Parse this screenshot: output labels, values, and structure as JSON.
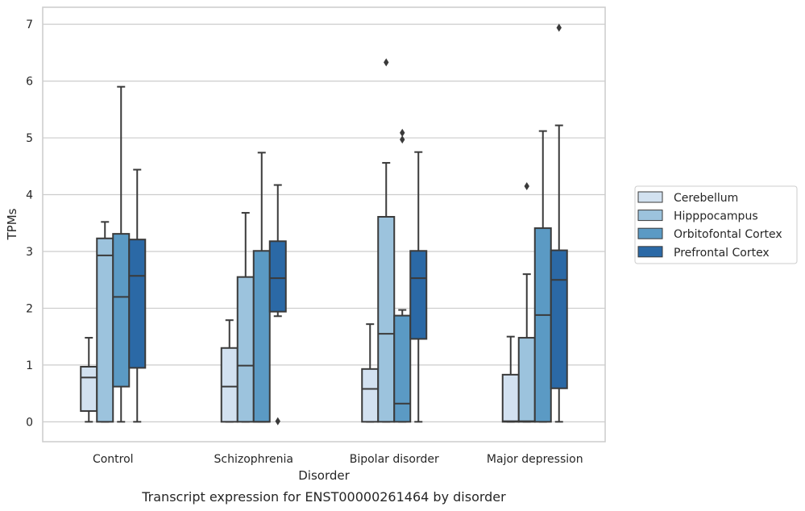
{
  "chart_data": {
    "type": "box",
    "xlabel": "Disorder",
    "ylabel": "TPMs",
    "caption": "Transcript expression for ENST00000261464 by disorder",
    "ylim": [
      -0.35,
      7.3
    ],
    "yticks": [
      "0",
      "1",
      "2",
      "3",
      "4",
      "5",
      "6",
      "7"
    ],
    "grid": true,
    "legend_position": "right",
    "categories": [
      "Control",
      "Schizophrenia",
      "Bipolar disorder",
      "Major depression"
    ],
    "series": [
      {
        "name": "Cerebellum",
        "color": "#d2e1f0",
        "boxes": [
          {
            "whislo": 0.0,
            "q1": 0.19,
            "med": 0.78,
            "q3": 0.97,
            "whishi": 1.48,
            "fliers": []
          },
          {
            "whislo": 0.0,
            "q1": 0.0,
            "med": 0.62,
            "q3": 1.3,
            "whishi": 1.79,
            "fliers": []
          },
          {
            "whislo": 0.0,
            "q1": 0.0,
            "med": 0.58,
            "q3": 0.93,
            "whishi": 1.72,
            "fliers": []
          },
          {
            "whislo": 0.0,
            "q1": 0.0,
            "med": 0.01,
            "q3": 0.83,
            "whishi": 1.5,
            "fliers": []
          }
        ]
      },
      {
        "name": "Hipppocampus",
        "color": "#9cc3dd",
        "boxes": [
          {
            "whislo": 0.0,
            "q1": 0.0,
            "med": 2.93,
            "q3": 3.23,
            "whishi": 3.52,
            "fliers": []
          },
          {
            "whislo": 0.0,
            "q1": 0.0,
            "med": 0.99,
            "q3": 2.55,
            "whishi": 3.68,
            "fliers": []
          },
          {
            "whislo": 0.0,
            "q1": 0.0,
            "med": 1.55,
            "q3": 3.61,
            "whishi": 4.56,
            "fliers": [
              6.33
            ]
          },
          {
            "whislo": 0.0,
            "q1": 0.0,
            "med": 0.01,
            "q3": 1.48,
            "whishi": 2.6,
            "fliers": [
              4.15
            ]
          }
        ]
      },
      {
        "name": "Orbitofontal Cortex",
        "color": "#5b9ac4",
        "boxes": [
          {
            "whislo": 0.0,
            "q1": 0.62,
            "med": 2.2,
            "q3": 3.31,
            "whishi": 5.9,
            "fliers": []
          },
          {
            "whislo": 0.0,
            "q1": 0.0,
            "med": 0.0,
            "q3": 3.01,
            "whishi": 4.74,
            "fliers": []
          },
          {
            "whislo": 0.0,
            "q1": 0.0,
            "med": 0.32,
            "q3": 1.87,
            "whishi": 1.97,
            "fliers": [
              4.97,
              5.09
            ]
          },
          {
            "whislo": 0.0,
            "q1": 0.0,
            "med": 1.88,
            "q3": 3.41,
            "whishi": 5.12,
            "fliers": []
          }
        ]
      },
      {
        "name": "Prefrontal Cortex",
        "color": "#2b69a6",
        "boxes": [
          {
            "whislo": 0.0,
            "q1": 0.95,
            "med": 2.57,
            "q3": 3.21,
            "whishi": 4.44,
            "fliers": []
          },
          {
            "whislo": 1.86,
            "q1": 1.94,
            "med": 2.53,
            "q3": 3.18,
            "whishi": 4.17,
            "fliers": [
              0.01
            ]
          },
          {
            "whislo": 0.0,
            "q1": 1.46,
            "med": 2.53,
            "q3": 3.01,
            "whishi": 4.75,
            "fliers": []
          },
          {
            "whislo": 0.0,
            "q1": 0.59,
            "med": 2.5,
            "q3": 3.02,
            "whishi": 5.22,
            "fliers": [
              6.94
            ]
          }
        ]
      }
    ]
  }
}
